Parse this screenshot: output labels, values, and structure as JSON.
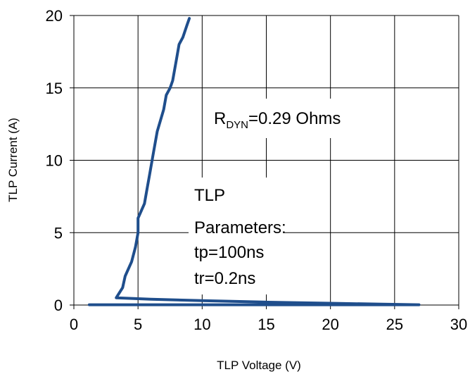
{
  "chart_data": {
    "type": "line",
    "title": "",
    "xlabel": "TLP Voltage (V)",
    "ylabel": "TLP Current (A)",
    "xlim": [
      0,
      30
    ],
    "ylim": [
      0,
      20
    ],
    "x_ticks": [
      0,
      5,
      10,
      15,
      20,
      25,
      30
    ],
    "y_ticks": [
      0,
      5,
      10,
      15,
      20
    ],
    "x_tick_labels": [
      "0",
      "5",
      "10",
      "15",
      "20",
      "25",
      "30"
    ],
    "y_tick_labels": [
      "0",
      "5",
      "10",
      "15",
      "20"
    ],
    "grid": true,
    "legend": "none",
    "line_color": "#1f4e8c",
    "series": [
      {
        "x": [
          1.2,
          22.0,
          26.9,
          24.0,
          20.0,
          15.0,
          10.0,
          6.0,
          3.3,
          3.8,
          4.0,
          4.5,
          4.8,
          5.0,
          5.0,
          5.5,
          5.7,
          5.9,
          6.2,
          6.5,
          7.0,
          7.2,
          7.5,
          7.7,
          8.0,
          8.2,
          8.5,
          8.8,
          9.0
        ],
        "y": [
          0.02,
          0.02,
          0.02,
          0.06,
          0.12,
          0.2,
          0.3,
          0.4,
          0.5,
          1.2,
          2.0,
          3.0,
          4.0,
          5.0,
          6.0,
          7.0,
          8.0,
          9.0,
          10.5,
          12.0,
          13.5,
          14.5,
          15.0,
          15.5,
          17.0,
          18.0,
          18.5,
          19.3,
          19.8
        ]
      }
    ],
    "annotations": [
      {
        "main": "R",
        "sub": "DYN",
        "rest": "=0.29  Ohms"
      },
      {
        "lines": [
          "TLP",
          "Parameters:",
          "tp=100ns",
          "tr=0.2ns"
        ]
      }
    ]
  }
}
